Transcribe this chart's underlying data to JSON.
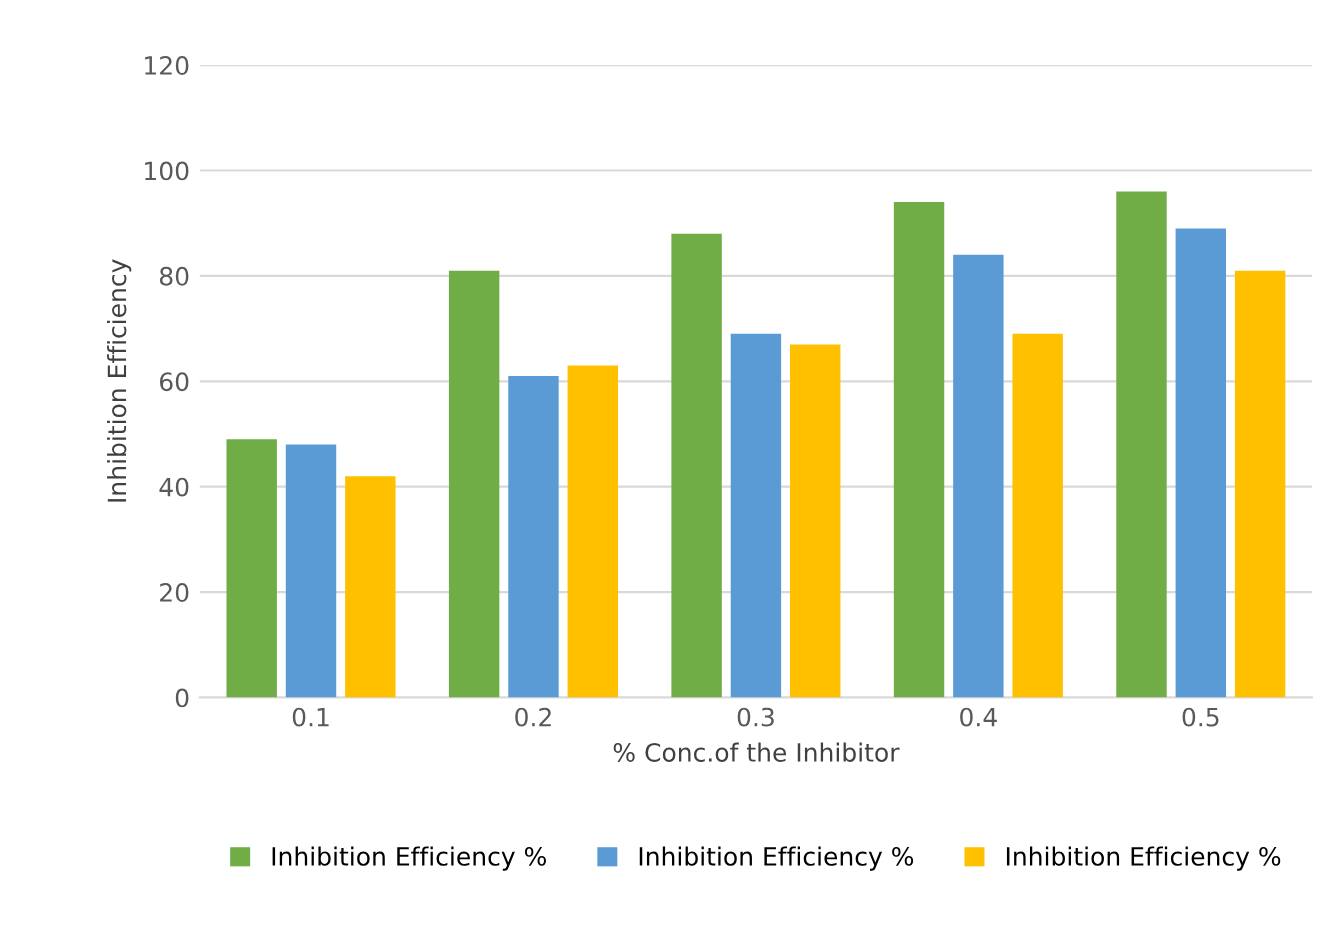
{
  "chart_data": {
    "type": "bar",
    "xlabel": "% Conc.of the Inhibitor",
    "ylabel": "Inhibition Efficiency",
    "categories": [
      "0.1",
      "0.2",
      "0.3",
      "0.4",
      "0.5"
    ],
    "series": [
      {
        "name": "Inhibition Efficiency %",
        "color": "#70ad47",
        "values": [
          49,
          81,
          88,
          94,
          96
        ]
      },
      {
        "name": "Inhibition Efficiency %",
        "color": "#5b9bd5",
        "values": [
          48,
          61,
          69,
          84,
          89
        ]
      },
      {
        "name": "Inhibition Efficiency %",
        "color": "#ffc000",
        "values": [
          42,
          63,
          67,
          69,
          81
        ]
      }
    ],
    "ylim": [
      0,
      120
    ],
    "yticks": [
      0,
      20,
      40,
      60,
      80,
      100,
      120
    ],
    "grid": "y",
    "legend": "bottom"
  }
}
